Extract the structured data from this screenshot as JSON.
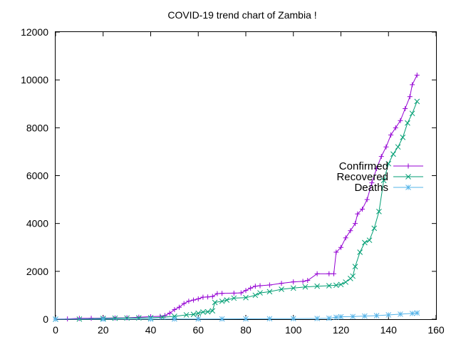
{
  "chart_data": {
    "type": "line",
    "title": "COVID-19 trend chart of Zambia !",
    "xlabel": "",
    "ylabel": "",
    "xlim": [
      0,
      160
    ],
    "ylim": [
      0,
      12000
    ],
    "x_ticks": [
      0,
      20,
      40,
      60,
      80,
      100,
      120,
      140,
      160
    ],
    "y_ticks": [
      0,
      2000,
      4000,
      6000,
      8000,
      10000,
      12000
    ],
    "grid": false,
    "legend_position": "right",
    "series": [
      {
        "name": "Confirmed",
        "color": "#9400d3",
        "marker": "plus",
        "points": [
          [
            0,
            2
          ],
          [
            5,
            12
          ],
          [
            10,
            36
          ],
          [
            15,
            39
          ],
          [
            20,
            45
          ],
          [
            25,
            52
          ],
          [
            30,
            61
          ],
          [
            35,
            84
          ],
          [
            40,
            106
          ],
          [
            44,
            119
          ],
          [
            46,
            153
          ],
          [
            48,
            252
          ],
          [
            50,
            400
          ],
          [
            52,
            500
          ],
          [
            54,
            654
          ],
          [
            56,
            753
          ],
          [
            58,
            800
          ],
          [
            60,
            850
          ],
          [
            62,
            920
          ],
          [
            64,
            930
          ],
          [
            66,
            950
          ],
          [
            68,
            1070
          ],
          [
            70,
            1080
          ],
          [
            75,
            1089
          ],
          [
            78,
            1100
          ],
          [
            80,
            1200
          ],
          [
            82,
            1300
          ],
          [
            84,
            1380
          ],
          [
            86,
            1400
          ],
          [
            90,
            1430
          ],
          [
            95,
            1500
          ],
          [
            100,
            1560
          ],
          [
            104,
            1580
          ],
          [
            106,
            1620
          ],
          [
            110,
            1900
          ],
          [
            115,
            1900
          ],
          [
            117,
            1900
          ],
          [
            118,
            2800
          ],
          [
            120,
            3000
          ],
          [
            122,
            3400
          ],
          [
            124,
            3700
          ],
          [
            126,
            4000
          ],
          [
            127,
            4400
          ],
          [
            129,
            4600
          ],
          [
            131,
            5000
          ],
          [
            133,
            5700
          ],
          [
            135,
            6300
          ],
          [
            137,
            6800
          ],
          [
            139,
            7200
          ],
          [
            141,
            7700
          ],
          [
            143,
            8000
          ],
          [
            145,
            8300
          ],
          [
            147,
            8800
          ],
          [
            149,
            9300
          ],
          [
            150,
            9800
          ],
          [
            152,
            10200
          ]
        ]
      },
      {
        "name": "Recovered",
        "color": "#009e73",
        "marker": "cross",
        "points": [
          [
            0,
            0
          ],
          [
            10,
            5
          ],
          [
            20,
            30
          ],
          [
            25,
            40
          ],
          [
            30,
            50
          ],
          [
            35,
            55
          ],
          [
            40,
            60
          ],
          [
            45,
            80
          ],
          [
            50,
            120
          ],
          [
            55,
            180
          ],
          [
            58,
            200
          ],
          [
            60,
            250
          ],
          [
            62,
            300
          ],
          [
            64,
            310
          ],
          [
            66,
            350
          ],
          [
            67,
            700
          ],
          [
            70,
            750
          ],
          [
            72,
            800
          ],
          [
            75,
            880
          ],
          [
            80,
            900
          ],
          [
            84,
            1000
          ],
          [
            86,
            1100
          ],
          [
            90,
            1150
          ],
          [
            95,
            1250
          ],
          [
            100,
            1300
          ],
          [
            105,
            1350
          ],
          [
            110,
            1380
          ],
          [
            115,
            1400
          ],
          [
            118,
            1420
          ],
          [
            120,
            1450
          ],
          [
            122,
            1550
          ],
          [
            124,
            1700
          ],
          [
            125,
            1800
          ],
          [
            126,
            2200
          ],
          [
            128,
            2800
          ],
          [
            130,
            3200
          ],
          [
            132,
            3300
          ],
          [
            134,
            3800
          ],
          [
            136,
            4500
          ],
          [
            138,
            5800
          ],
          [
            140,
            6500
          ],
          [
            142,
            6900
          ],
          [
            144,
            7200
          ],
          [
            146,
            7600
          ],
          [
            148,
            8200
          ],
          [
            150,
            8600
          ],
          [
            152,
            9100
          ]
        ]
      },
      {
        "name": "Deaths",
        "color": "#56b4e9",
        "marker": "star",
        "points": [
          [
            0,
            0
          ],
          [
            20,
            1
          ],
          [
            40,
            3
          ],
          [
            50,
            7
          ],
          [
            60,
            10
          ],
          [
            70,
            12
          ],
          [
            80,
            15
          ],
          [
            90,
            20
          ],
          [
            100,
            25
          ],
          [
            110,
            30
          ],
          [
            115,
            40
          ],
          [
            118,
            80
          ],
          [
            120,
            100
          ],
          [
            125,
            110
          ],
          [
            130,
            130
          ],
          [
            135,
            150
          ],
          [
            140,
            180
          ],
          [
            145,
            210
          ],
          [
            150,
            240
          ],
          [
            152,
            260
          ]
        ]
      }
    ]
  }
}
